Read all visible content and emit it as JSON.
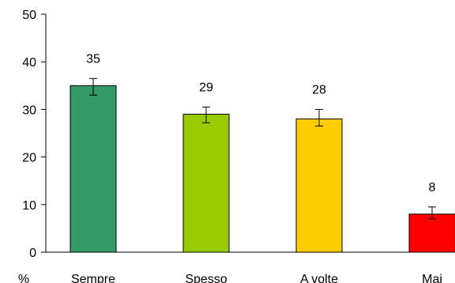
{
  "chart_data": {
    "type": "bar",
    "title": "",
    "xlabel": "",
    "ylabel": "%",
    "categories": [
      "Sempre",
      "Spesso",
      "A volte",
      "Mai"
    ],
    "values": [
      35,
      29,
      28,
      8
    ],
    "error_low": [
      33,
      27.2,
      26.5,
      7
    ],
    "error_high": [
      36.5,
      30.5,
      30,
      9.5
    ],
    "data_labels": [
      "35",
      "29",
      "28",
      "8"
    ],
    "colors": [
      "#339966",
      "#99cc00",
      "#ffcc00",
      "#ff0000"
    ],
    "ylim": [
      0,
      50
    ],
    "yticks": [
      0,
      10,
      20,
      30,
      40,
      50
    ],
    "grid": false,
    "legend": "none"
  }
}
